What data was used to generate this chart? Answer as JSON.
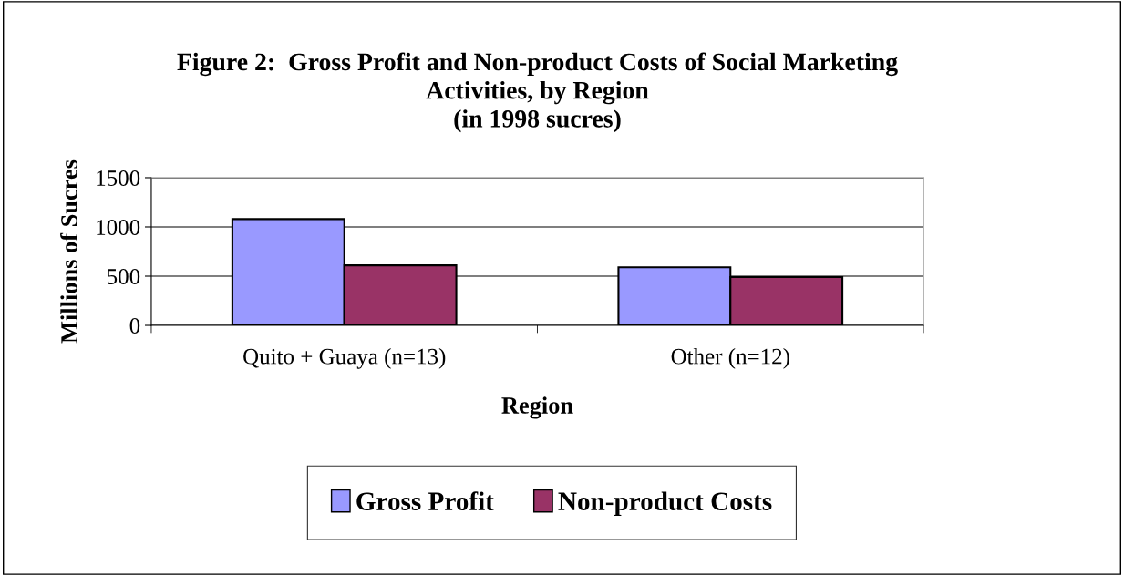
{
  "chart_data": {
    "type": "bar",
    "title": "Figure 2:  Gross Profit and Non-product Costs of Social Marketing\nActivities, by Region\n(in 1998 sucres)",
    "xlabel": "Region",
    "ylabel": "Millions of Sucres",
    "categories": [
      "Quito + Guaya (n=13)",
      "Other (n=12)"
    ],
    "series": [
      {
        "name": "Gross Profit",
        "color": "#9999ff",
        "values": [
          1080,
          590
        ]
      },
      {
        "name": "Non-product Costs",
        "color": "#993366",
        "values": [
          610,
          490
        ]
      }
    ],
    "ylim": [
      0,
      1500
    ],
    "yticks": [
      0,
      500,
      1000,
      1500
    ],
    "grid": "y",
    "legend": "bottom"
  }
}
